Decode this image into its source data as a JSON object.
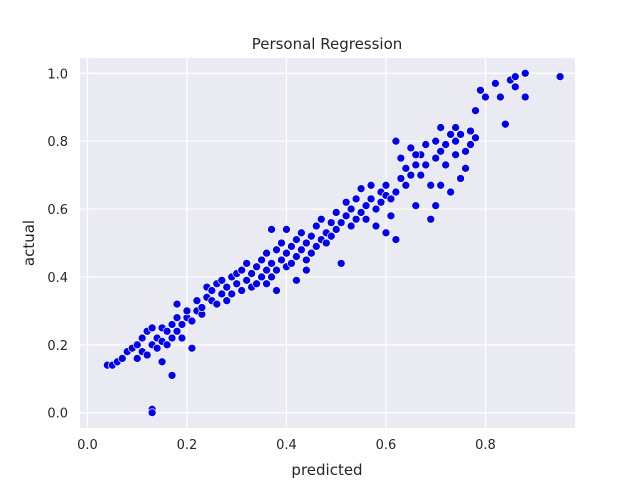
{
  "chart_data": {
    "type": "scatter",
    "title": "Personal Regression",
    "xlabel": "predicted",
    "ylabel": "actual",
    "xlim": [
      -0.015,
      0.98
    ],
    "ylim": [
      -0.045,
      1.045
    ],
    "xticks": [
      0.0,
      0.2,
      0.4,
      0.6,
      0.8
    ],
    "yticks": [
      0.0,
      0.2,
      0.4,
      0.6,
      0.8,
      1.0
    ],
    "xtick_labels": [
      "0.0",
      "0.2",
      "0.4",
      "0.6",
      "0.8"
    ],
    "ytick_labels": [
      "0.0",
      "0.2",
      "0.4",
      "0.6",
      "0.8",
      "1.0"
    ],
    "grid": true,
    "legend": "none",
    "colors": {
      "background": "#eaeaf2",
      "grid": "#ffffff",
      "marker": "#0000ee",
      "marker_edge": "#ffffff",
      "text": "#262626"
    },
    "series": [
      {
        "points": [
          [
            0.04,
            0.14
          ],
          [
            0.05,
            0.14
          ],
          [
            0.06,
            0.15
          ],
          [
            0.07,
            0.16
          ],
          [
            0.08,
            0.18
          ],
          [
            0.09,
            0.19
          ],
          [
            0.1,
            0.16
          ],
          [
            0.1,
            0.2
          ],
          [
            0.11,
            0.18
          ],
          [
            0.11,
            0.22
          ],
          [
            0.12,
            0.17
          ],
          [
            0.12,
            0.24
          ],
          [
            0.13,
            0.2
          ],
          [
            0.13,
            0.25
          ],
          [
            0.13,
            0.01
          ],
          [
            0.13,
            0.0
          ],
          [
            0.14,
            0.19
          ],
          [
            0.14,
            0.22
          ],
          [
            0.15,
            0.21
          ],
          [
            0.15,
            0.25
          ],
          [
            0.15,
            0.15
          ],
          [
            0.16,
            0.2
          ],
          [
            0.16,
            0.24
          ],
          [
            0.17,
            0.26
          ],
          [
            0.17,
            0.22
          ],
          [
            0.17,
            0.11
          ],
          [
            0.18,
            0.24
          ],
          [
            0.18,
            0.28
          ],
          [
            0.18,
            0.32
          ],
          [
            0.19,
            0.26
          ],
          [
            0.19,
            0.22
          ],
          [
            0.2,
            0.28
          ],
          [
            0.2,
            0.3
          ],
          [
            0.21,
            0.27
          ],
          [
            0.21,
            0.19
          ],
          [
            0.22,
            0.3
          ],
          [
            0.22,
            0.33
          ],
          [
            0.23,
            0.29
          ],
          [
            0.23,
            0.31
          ],
          [
            0.24,
            0.34
          ],
          [
            0.24,
            0.37
          ],
          [
            0.25,
            0.33
          ],
          [
            0.25,
            0.36
          ],
          [
            0.26,
            0.32
          ],
          [
            0.26,
            0.38
          ],
          [
            0.27,
            0.35
          ],
          [
            0.27,
            0.39
          ],
          [
            0.28,
            0.33
          ],
          [
            0.28,
            0.37
          ],
          [
            0.29,
            0.4
          ],
          [
            0.29,
            0.35
          ],
          [
            0.3,
            0.38
          ],
          [
            0.3,
            0.41
          ],
          [
            0.31,
            0.36
          ],
          [
            0.31,
            0.42
          ],
          [
            0.32,
            0.39
          ],
          [
            0.32,
            0.44
          ],
          [
            0.33,
            0.37
          ],
          [
            0.33,
            0.41
          ],
          [
            0.34,
            0.43
          ],
          [
            0.34,
            0.38
          ],
          [
            0.35,
            0.45
          ],
          [
            0.35,
            0.4
          ],
          [
            0.36,
            0.42
          ],
          [
            0.36,
            0.47
          ],
          [
            0.36,
            0.38
          ],
          [
            0.37,
            0.44
          ],
          [
            0.37,
            0.4
          ],
          [
            0.37,
            0.54
          ],
          [
            0.38,
            0.48
          ],
          [
            0.38,
            0.42
          ],
          [
            0.38,
            0.36
          ],
          [
            0.39,
            0.45
          ],
          [
            0.39,
            0.5
          ],
          [
            0.4,
            0.43
          ],
          [
            0.4,
            0.47
          ],
          [
            0.4,
            0.54
          ],
          [
            0.41,
            0.49
          ],
          [
            0.41,
            0.44
          ],
          [
            0.42,
            0.51
          ],
          [
            0.42,
            0.46
          ],
          [
            0.42,
            0.39
          ],
          [
            0.43,
            0.48
          ],
          [
            0.43,
            0.53
          ],
          [
            0.44,
            0.45
          ],
          [
            0.44,
            0.5
          ],
          [
            0.44,
            0.42
          ],
          [
            0.45,
            0.52
          ],
          [
            0.45,
            0.47
          ],
          [
            0.46,
            0.55
          ],
          [
            0.46,
            0.49
          ],
          [
            0.47,
            0.51
          ],
          [
            0.47,
            0.57
          ],
          [
            0.48,
            0.53
          ],
          [
            0.48,
            0.5
          ],
          [
            0.49,
            0.56
          ],
          [
            0.49,
            0.52
          ],
          [
            0.5,
            0.54
          ],
          [
            0.5,
            0.59
          ],
          [
            0.51,
            0.56
          ],
          [
            0.51,
            0.44
          ],
          [
            0.52,
            0.58
          ],
          [
            0.52,
            0.62
          ],
          [
            0.53,
            0.55
          ],
          [
            0.53,
            0.6
          ],
          [
            0.54,
            0.57
          ],
          [
            0.54,
            0.63
          ],
          [
            0.55,
            0.59
          ],
          [
            0.55,
            0.66
          ],
          [
            0.56,
            0.61
          ],
          [
            0.56,
            0.57
          ],
          [
            0.57,
            0.63
          ],
          [
            0.57,
            0.67
          ],
          [
            0.58,
            0.6
          ],
          [
            0.58,
            0.55
          ],
          [
            0.59,
            0.65
          ],
          [
            0.59,
            0.62
          ],
          [
            0.6,
            0.64
          ],
          [
            0.6,
            0.67
          ],
          [
            0.61,
            0.58
          ],
          [
            0.61,
            0.63
          ],
          [
            0.62,
            0.65
          ],
          [
            0.62,
            0.8
          ],
          [
            0.62,
            0.51
          ],
          [
            0.63,
            0.69
          ],
          [
            0.63,
            0.75
          ],
          [
            0.64,
            0.72
          ],
          [
            0.64,
            0.67
          ],
          [
            0.65,
            0.78
          ],
          [
            0.65,
            0.7
          ],
          [
            0.66,
            0.73
          ],
          [
            0.66,
            0.61
          ],
          [
            0.67,
            0.76
          ],
          [
            0.67,
            0.7
          ],
          [
            0.68,
            0.79
          ],
          [
            0.68,
            0.73
          ],
          [
            0.69,
            0.57
          ],
          [
            0.69,
            0.67
          ],
          [
            0.7,
            0.75
          ],
          [
            0.7,
            0.8
          ],
          [
            0.71,
            0.77
          ],
          [
            0.71,
            0.67
          ],
          [
            0.72,
            0.79
          ],
          [
            0.72,
            0.73
          ],
          [
            0.73,
            0.82
          ],
          [
            0.73,
            0.65
          ],
          [
            0.74,
            0.8
          ],
          [
            0.74,
            0.76
          ],
          [
            0.75,
            0.69
          ],
          [
            0.75,
            0.82
          ],
          [
            0.76,
            0.77
          ],
          [
            0.76,
            0.72
          ],
          [
            0.77,
            0.83
          ],
          [
            0.77,
            0.79
          ],
          [
            0.78,
            0.89
          ],
          [
            0.78,
            0.81
          ],
          [
            0.79,
            0.95
          ],
          [
            0.8,
            0.93
          ],
          [
            0.82,
            0.97
          ],
          [
            0.83,
            0.93
          ],
          [
            0.84,
            0.85
          ],
          [
            0.85,
            0.98
          ],
          [
            0.86,
            0.99
          ],
          [
            0.86,
            0.96
          ],
          [
            0.88,
            1.0
          ],
          [
            0.88,
            0.93
          ],
          [
            0.95,
            0.99
          ],
          [
            0.7,
            0.61
          ],
          [
            0.6,
            0.53
          ],
          [
            0.66,
            0.76
          ],
          [
            0.71,
            0.84
          ],
          [
            0.74,
            0.84
          ]
        ]
      }
    ]
  }
}
